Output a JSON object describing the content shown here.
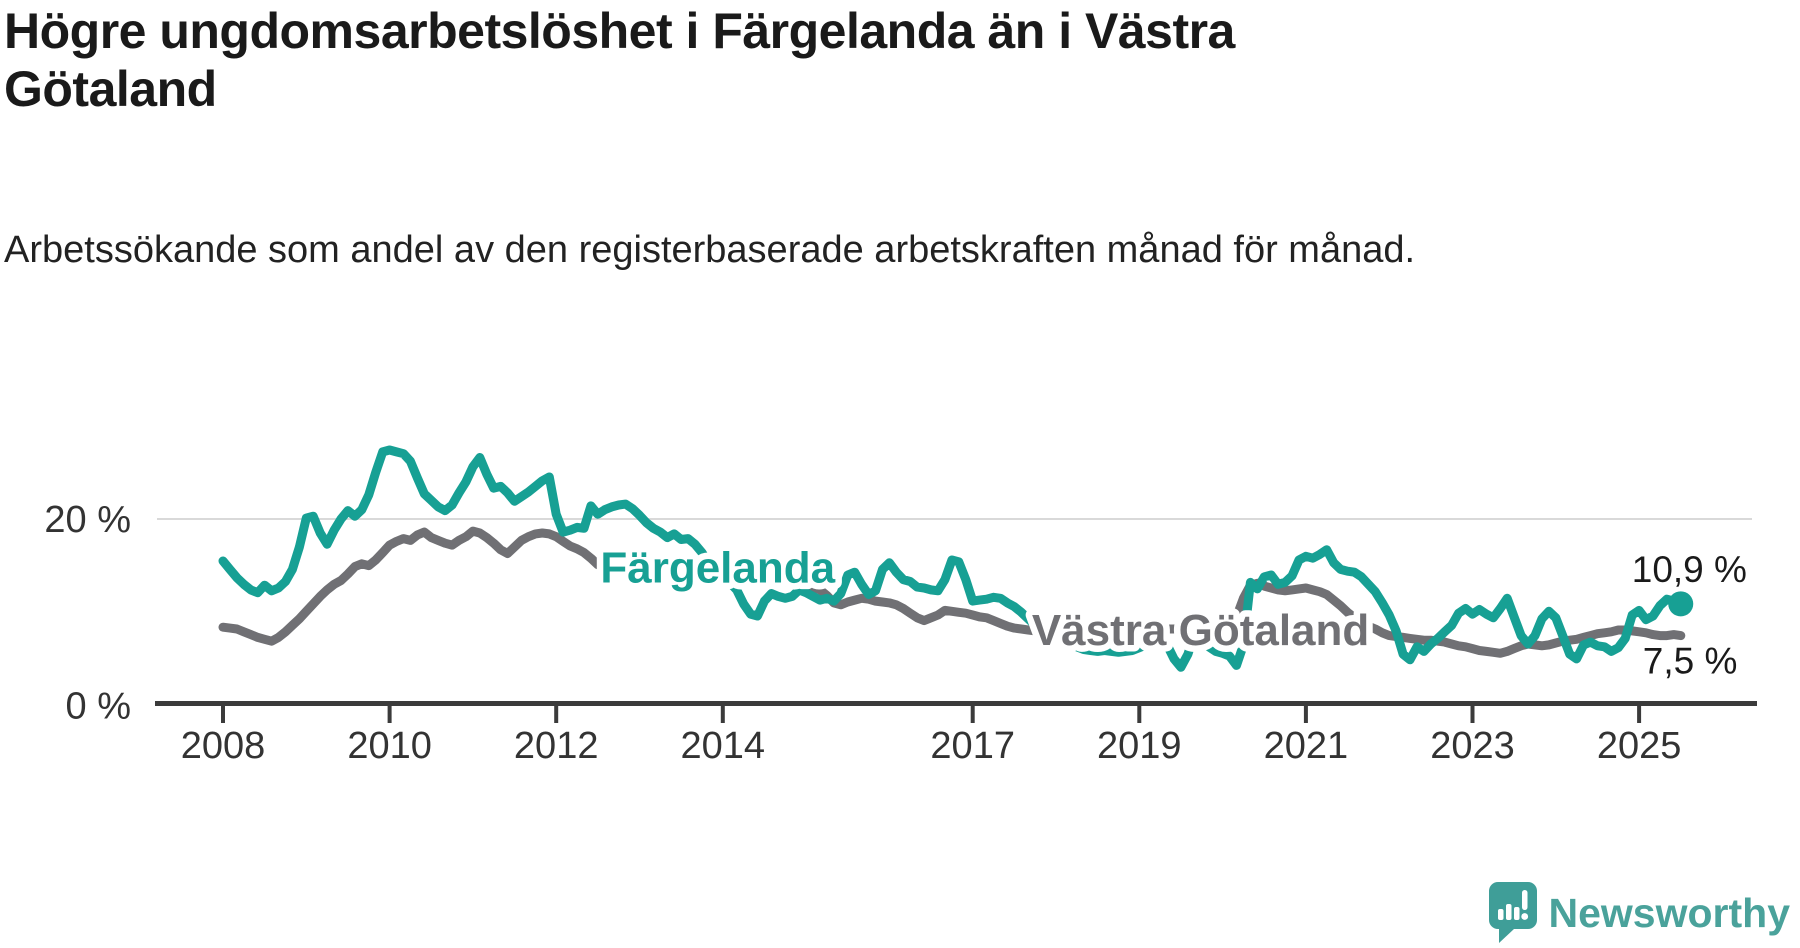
{
  "header": {
    "title": "Högre ungdomsarbetslöshet i Färgelanda än i Västra Götaland",
    "subtitle": "Arbetssökande som andel av den registerbaserade arbetskraften månad för månad."
  },
  "footer": {
    "brand": "Newsworthy"
  },
  "colors": {
    "accent_teal": "#17a094",
    "series_gray": "#707074",
    "axis": "#3b3b3b",
    "gridline": "#d9d9d9",
    "text_dark": "#1a1a1a",
    "logo_teal": "#3f9e98"
  },
  "chart_data": {
    "type": "line",
    "title": "Högre ungdomsarbetslöshet i Färgelanda än i Västra Götaland",
    "xlabel": "",
    "ylabel": "Arbetssökande som andel av den registerbaserade arbetskraften",
    "x_start_year": 2008.0,
    "x_step_years": 0.0833333,
    "x_end_year": 2025.5,
    "ylim": [
      0,
      30
    ],
    "grid_values": [
      20
    ],
    "legend_position": "inline-labels",
    "x_ticks": [
      {
        "value": 2008,
        "label": "2008"
      },
      {
        "value": 2010,
        "label": "2010"
      },
      {
        "value": 2012,
        "label": "2012"
      },
      {
        "value": 2014,
        "label": "2014"
      },
      {
        "value": 2017,
        "label": "2017"
      },
      {
        "value": 2019,
        "label": "2019"
      },
      {
        "value": 2021,
        "label": "2021"
      },
      {
        "value": 2023,
        "label": "2023"
      },
      {
        "value": 2025,
        "label": "2025"
      }
    ],
    "y_ticks": [
      {
        "value": 0,
        "label": "0 %"
      },
      {
        "value": 20,
        "label": "20 %"
      }
    ],
    "series": [
      {
        "name": "Färgelanda",
        "color": "#17a094",
        "end_label": "10,9 %",
        "end_dot": true,
        "inline_label": {
          "year": 2012.53,
          "value": 13.2
        },
        "values": [
          15.5,
          14.6,
          13.7,
          13,
          12.4,
          12.1,
          12.9,
          12.3,
          12.6,
          13.3,
          14.6,
          17,
          20.1,
          20.3,
          18.5,
          17.3,
          18.8,
          20,
          20.9,
          20.3,
          21,
          22.6,
          25,
          27.2,
          27.4,
          27.2,
          27,
          26.2,
          24.4,
          22.7,
          22,
          21.3,
          20.9,
          21.5,
          22.8,
          24,
          25.6,
          26.6,
          24.8,
          23.3,
          23.5,
          22.8,
          21.9,
          22.4,
          22.9,
          23.5,
          24.1,
          24.5,
          20.5,
          18.6,
          18.8,
          19.1,
          19,
          21.4,
          20.5,
          21,
          21.3,
          21.5,
          21.6,
          21.1,
          20.4,
          19.6,
          19,
          18.6,
          18,
          18.4,
          17.8,
          17.9,
          17.3,
          16.4,
          15.2,
          14.1,
          13.5,
          13.2,
          12.4,
          10.9,
          9.8,
          9.6,
          11.2,
          12,
          11.7,
          11.5,
          11.7,
          12.4,
          12.1,
          11.7,
          11.3,
          11.5,
          11.2,
          12,
          14,
          14.3,
          13,
          11.9,
          12.3,
          14.6,
          15.3,
          14.3,
          13.5,
          13.3,
          12.7,
          12.6,
          12.4,
          12.3,
          13.5,
          15.6,
          15.4,
          13.5,
          11.2,
          11.3,
          11.4,
          11.6,
          11.5,
          11,
          10.6,
          10,
          9.3,
          8.6,
          8,
          7.7,
          7.4,
          7,
          6.6,
          6.3,
          6,
          5.9,
          5.8,
          5.9,
          5.8,
          5.7,
          5.8,
          5.9,
          6.2,
          6.5,
          7,
          7.7,
          6.5,
          5,
          4.1,
          5.5,
          7.8,
          7,
          6.3,
          5.8,
          5.6,
          5.3,
          4.3,
          6.5,
          13.2,
          12.5,
          13.8,
          14,
          13,
          13.2,
          13.9,
          15.6,
          16,
          15.8,
          16.2,
          16.7,
          15.3,
          14.6,
          14.4,
          14.3,
          13.8,
          13,
          12.2,
          11,
          9.7,
          8,
          5.5,
          4.9,
          6.3,
          5.8,
          6.6,
          7.2,
          7.9,
          8.6,
          9.9,
          10.4,
          9.8,
          10.3,
          9.8,
          9.4,
          10.4,
          11.5,
          9.5,
          7.5,
          6.6,
          7.5,
          9.3,
          10.1,
          9.4,
          7.5,
          5.5,
          5,
          6.5,
          6.8,
          6.4,
          6.3,
          5.8,
          6.2,
          7.2,
          9.7,
          10.2,
          9.2,
          9.6,
          10.7,
          11.4,
          11.2,
          10.9
        ]
      },
      {
        "name": "Västra Götaland",
        "color": "#707074",
        "end_label": "7,5 %",
        "end_dot": false,
        "inline_label": {
          "year": 2017.71,
          "value": 6.5
        },
        "values": [
          8.4,
          8.3,
          8.2,
          7.9,
          7.6,
          7.3,
          7.1,
          6.9,
          7.3,
          7.9,
          8.6,
          9.3,
          10.1,
          10.9,
          11.7,
          12.4,
          13,
          13.4,
          14.1,
          14.9,
          15.2,
          15,
          15.6,
          16.4,
          17.2,
          17.6,
          17.9,
          17.7,
          18.3,
          18.6,
          18,
          17.7,
          17.4,
          17.2,
          17.7,
          18.1,
          18.7,
          18.5,
          18,
          17.4,
          16.7,
          16.3,
          17,
          17.7,
          18.1,
          18.4,
          18.5,
          18.4,
          18.1,
          17.6,
          17.1,
          16.8,
          16.4,
          15.8,
          15.1,
          14.8,
          14.6,
          14.5,
          14.4,
          14.3,
          14.2,
          14,
          13.9,
          13.8,
          13.8,
          13.7,
          13.7,
          13.6,
          13.6,
          13.5,
          13.5,
          13.4,
          13.4,
          13.4,
          13.3,
          13.3,
          13.4,
          13.5,
          13.4,
          13.3,
          13.1,
          13.2,
          13.4,
          13.2,
          13.1,
          12.7,
          12.4,
          11.8,
          11,
          10.8,
          11.1,
          11.3,
          11.5,
          11.4,
          11.2,
          11.1,
          11,
          10.8,
          10.4,
          9.9,
          9.4,
          9.1,
          9.4,
          9.7,
          10.2,
          10.1,
          10,
          9.9,
          9.7,
          9.5,
          9.4,
          9.1,
          8.8,
          8.5,
          8.3,
          8.2,
          8.1,
          8,
          7.9,
          7.8,
          7.8,
          7.7,
          7.7,
          7.6,
          7.6,
          7.5,
          7.5,
          7.6,
          7.6,
          7.7,
          7.8,
          7.9,
          8,
          8.2,
          8.3,
          8.3,
          8.2,
          8.2,
          8.3,
          8.4,
          8.5,
          8.6,
          8.7,
          8.8,
          8.9,
          9,
          9.5,
          11.5,
          12.9,
          13.1,
          12.8,
          12.6,
          12.4,
          12.3,
          12.4,
          12.5,
          12.6,
          12.4,
          12.2,
          11.9,
          11.3,
          10.7,
          10,
          9.4,
          8.9,
          8.5,
          8.2,
          7.8,
          7.5,
          7.4,
          7.3,
          7.2,
          7.1,
          7,
          7,
          6.9,
          6.8,
          6.6,
          6.4,
          6.3,
          6.1,
          5.9,
          5.8,
          5.7,
          5.6,
          5.8,
          6.1,
          6.4,
          6.6,
          6.5,
          6.4,
          6.5,
          6.7,
          6.9,
          7,
          7.1,
          7.3,
          7.5,
          7.7,
          7.8,
          7.9,
          8.1,
          8.1,
          8,
          7.9,
          7.8,
          7.6,
          7.5,
          7.5,
          7.6,
          7.5
        ]
      }
    ]
  }
}
